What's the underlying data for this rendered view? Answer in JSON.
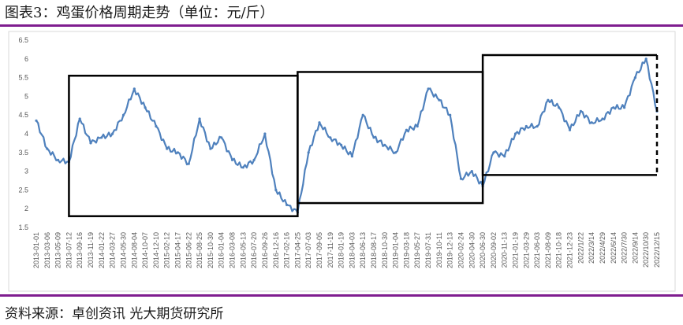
{
  "header": {
    "title": "图表3：鸡蛋价格周期走势（单位：元/斤）"
  },
  "footer": {
    "source": "资料来源：卓创资讯 光大期货研究所"
  },
  "colors": {
    "line": "#4f81bd",
    "rule": "#7f1d8f",
    "box": "#000000",
    "grid": "#d9d9d9"
  },
  "chart_data": {
    "type": "line",
    "title": "",
    "xlabel": "",
    "ylabel": "",
    "ylim": [
      1.5,
      6.5
    ],
    "yticks": [
      1.5,
      2,
      2.5,
      3,
      3.5,
      4,
      4.5,
      5,
      5.5,
      6,
      6.5
    ],
    "grid": false,
    "legend": "none",
    "categories": [
      "2013-01-01",
      "2013-03-06",
      "2013-05-09",
      "2013-07-12",
      "2013-09-16",
      "2013-11-19",
      "2014-01-22",
      "2014-03-27",
      "2014-05-30",
      "2014-08-04",
      "2014-10-07",
      "2014-12-10",
      "2015-02-12",
      "2015-04-17",
      "2015-06-22",
      "2015-08-25",
      "2015-10-30",
      "2016-01-04",
      "2016-03-08",
      "2016-05-13",
      "2016-07-20",
      "2016-09-26",
      "2016-12-16",
      "2017-02-16",
      "2017-04-25",
      "2017-07-03",
      "2017-09-05",
      "2017-11-19",
      "2018-01-19",
      "2018-04-03",
      "2018-06-13",
      "2018-08-17",
      "2018-10-30",
      "2019-01-04",
      "2019-03-18",
      "2019-05-27",
      "2019-07-31",
      "2019-10-11",
      "2019-12-13",
      "2020-02-24",
      "2020-04-30",
      "2020-06-30",
      "2020-09-02",
      "2020-11-13",
      "2021-01-19",
      "2021-03-29",
      "2021-06-03",
      "2021-08-09",
      "2021-10-18",
      "2021-12-23",
      "2022/1/22",
      "2022/3/14",
      "2022/4/29",
      "2022/6/14",
      "2022/7/30",
      "2022/9/14",
      "2022/10/30",
      "2022/12/15"
    ],
    "series": [
      {
        "values": [
          4.35,
          3.6,
          3.3,
          3.25,
          4.4,
          3.75,
          3.9,
          4.0,
          4.5,
          5.2,
          4.7,
          4.2,
          3.6,
          3.5,
          3.2,
          4.4,
          3.6,
          3.9,
          3.3,
          3.1,
          3.3,
          4.0,
          2.5,
          2.1,
          1.9,
          3.5,
          4.3,
          3.9,
          3.7,
          3.4,
          4.5,
          3.9,
          3.7,
          3.5,
          4.1,
          4.2,
          5.2,
          4.9,
          4.5,
          2.8,
          3.0,
          2.6,
          3.5,
          3.4,
          4.0,
          4.2,
          4.2,
          4.9,
          4.7,
          4.1,
          4.6,
          4.3,
          4.4,
          4.7,
          4.7,
          5.5,
          6.0,
          4.6
        ]
      }
    ],
    "annotations": [
      {
        "type": "box",
        "x_from": "2013-07-12",
        "x_to": "2017-04-25",
        "y_from": 1.8,
        "y_to": 5.55
      },
      {
        "type": "box",
        "x_from": "2017-04-25",
        "x_to": "2020-06-30",
        "y_from": 2.15,
        "y_to": 5.65
      },
      {
        "type": "box",
        "x_from": "2020-06-30",
        "x_to": "2022/12/15",
        "y_from": 2.9,
        "y_to": 6.1,
        "right_edge": "dashed"
      }
    ]
  }
}
